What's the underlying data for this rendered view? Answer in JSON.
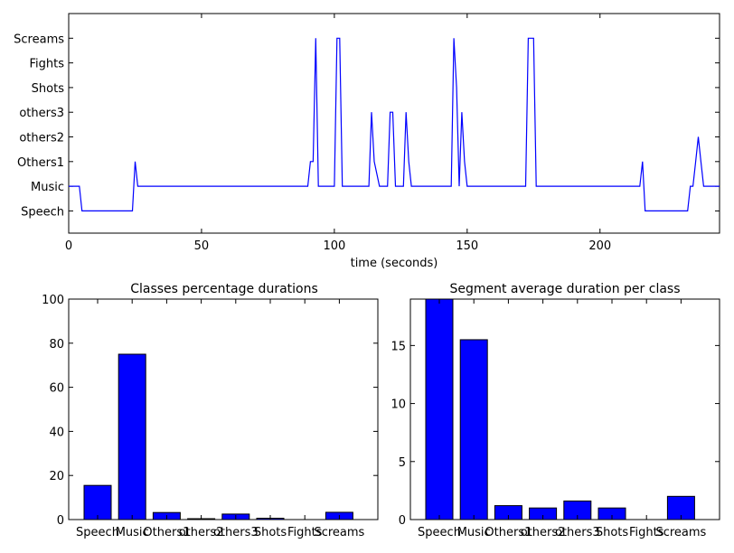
{
  "chart_data": [
    {
      "type": "line",
      "title": "",
      "xlabel": "time (seconds)",
      "ylabel": "",
      "xlim": [
        0,
        245
      ],
      "xticks": [
        "0",
        "50",
        "100",
        "150",
        "200"
      ],
      "xtick_values": [
        0,
        50,
        100,
        150,
        200
      ],
      "yticks": [
        "Speech",
        "Music",
        "Others1",
        "others2",
        "others3",
        "Shots",
        "Fights",
        "Screams"
      ],
      "ylim": [
        -0.9,
        8.0
      ],
      "grid": false,
      "series": [
        {
          "x": [
            0,
            4,
            5,
            24,
            25,
            26,
            90,
            91,
            92,
            93,
            94,
            100,
            101,
            102,
            103,
            113,
            114,
            115,
            117,
            120,
            121,
            122,
            123,
            126,
            127,
            128,
            129,
            144,
            145,
            146,
            147,
            148,
            149,
            150,
            172,
            173,
            175,
            176,
            177,
            215,
            216,
            217,
            233,
            234,
            235,
            236,
            237,
            238,
            239,
            240,
            245
          ],
          "y": [
            1,
            1,
            0,
            0,
            2,
            1,
            1,
            2,
            2,
            7,
            1,
            1,
            7,
            7,
            1,
            1,
            4,
            2,
            1,
            1,
            4,
            4,
            1,
            1,
            4,
            2,
            1,
            1,
            7,
            5,
            1,
            4,
            2,
            1,
            1,
            7,
            7,
            1,
            1,
            1,
            2,
            0,
            0,
            1,
            1,
            2,
            3,
            2,
            1,
            1,
            1
          ]
        }
      ]
    },
    {
      "type": "bar",
      "title": "Classes percentage durations",
      "xlabel": "",
      "ylabel": "",
      "categories": [
        "Speech",
        "Music",
        "Others1",
        "others2",
        "others3",
        "Shots",
        "Fights",
        "Screams"
      ],
      "values": [
        15.5,
        75,
        3.2,
        0.4,
        2.5,
        0.6,
        0,
        3.3
      ],
      "ylim": [
        0,
        100
      ],
      "yticks": [
        "0",
        "20",
        "40",
        "60",
        "80",
        "100"
      ],
      "ytick_values": [
        0,
        20,
        40,
        60,
        80,
        100
      ],
      "grid": false
    },
    {
      "type": "bar",
      "title": "Segment average duration per class",
      "xlabel": "",
      "ylabel": "",
      "categories": [
        "Speech",
        "Music",
        "Others1",
        "others2",
        "others3",
        "Shots",
        "Fights",
        "Screams"
      ],
      "values": [
        19,
        15.5,
        1.2,
        1.0,
        1.6,
        1.0,
        0,
        2.0
      ],
      "ylim": [
        0,
        19
      ],
      "yticks": [
        "0",
        "5",
        "10",
        "15"
      ],
      "ytick_values": [
        0,
        5,
        10,
        15
      ],
      "grid": false
    }
  ]
}
